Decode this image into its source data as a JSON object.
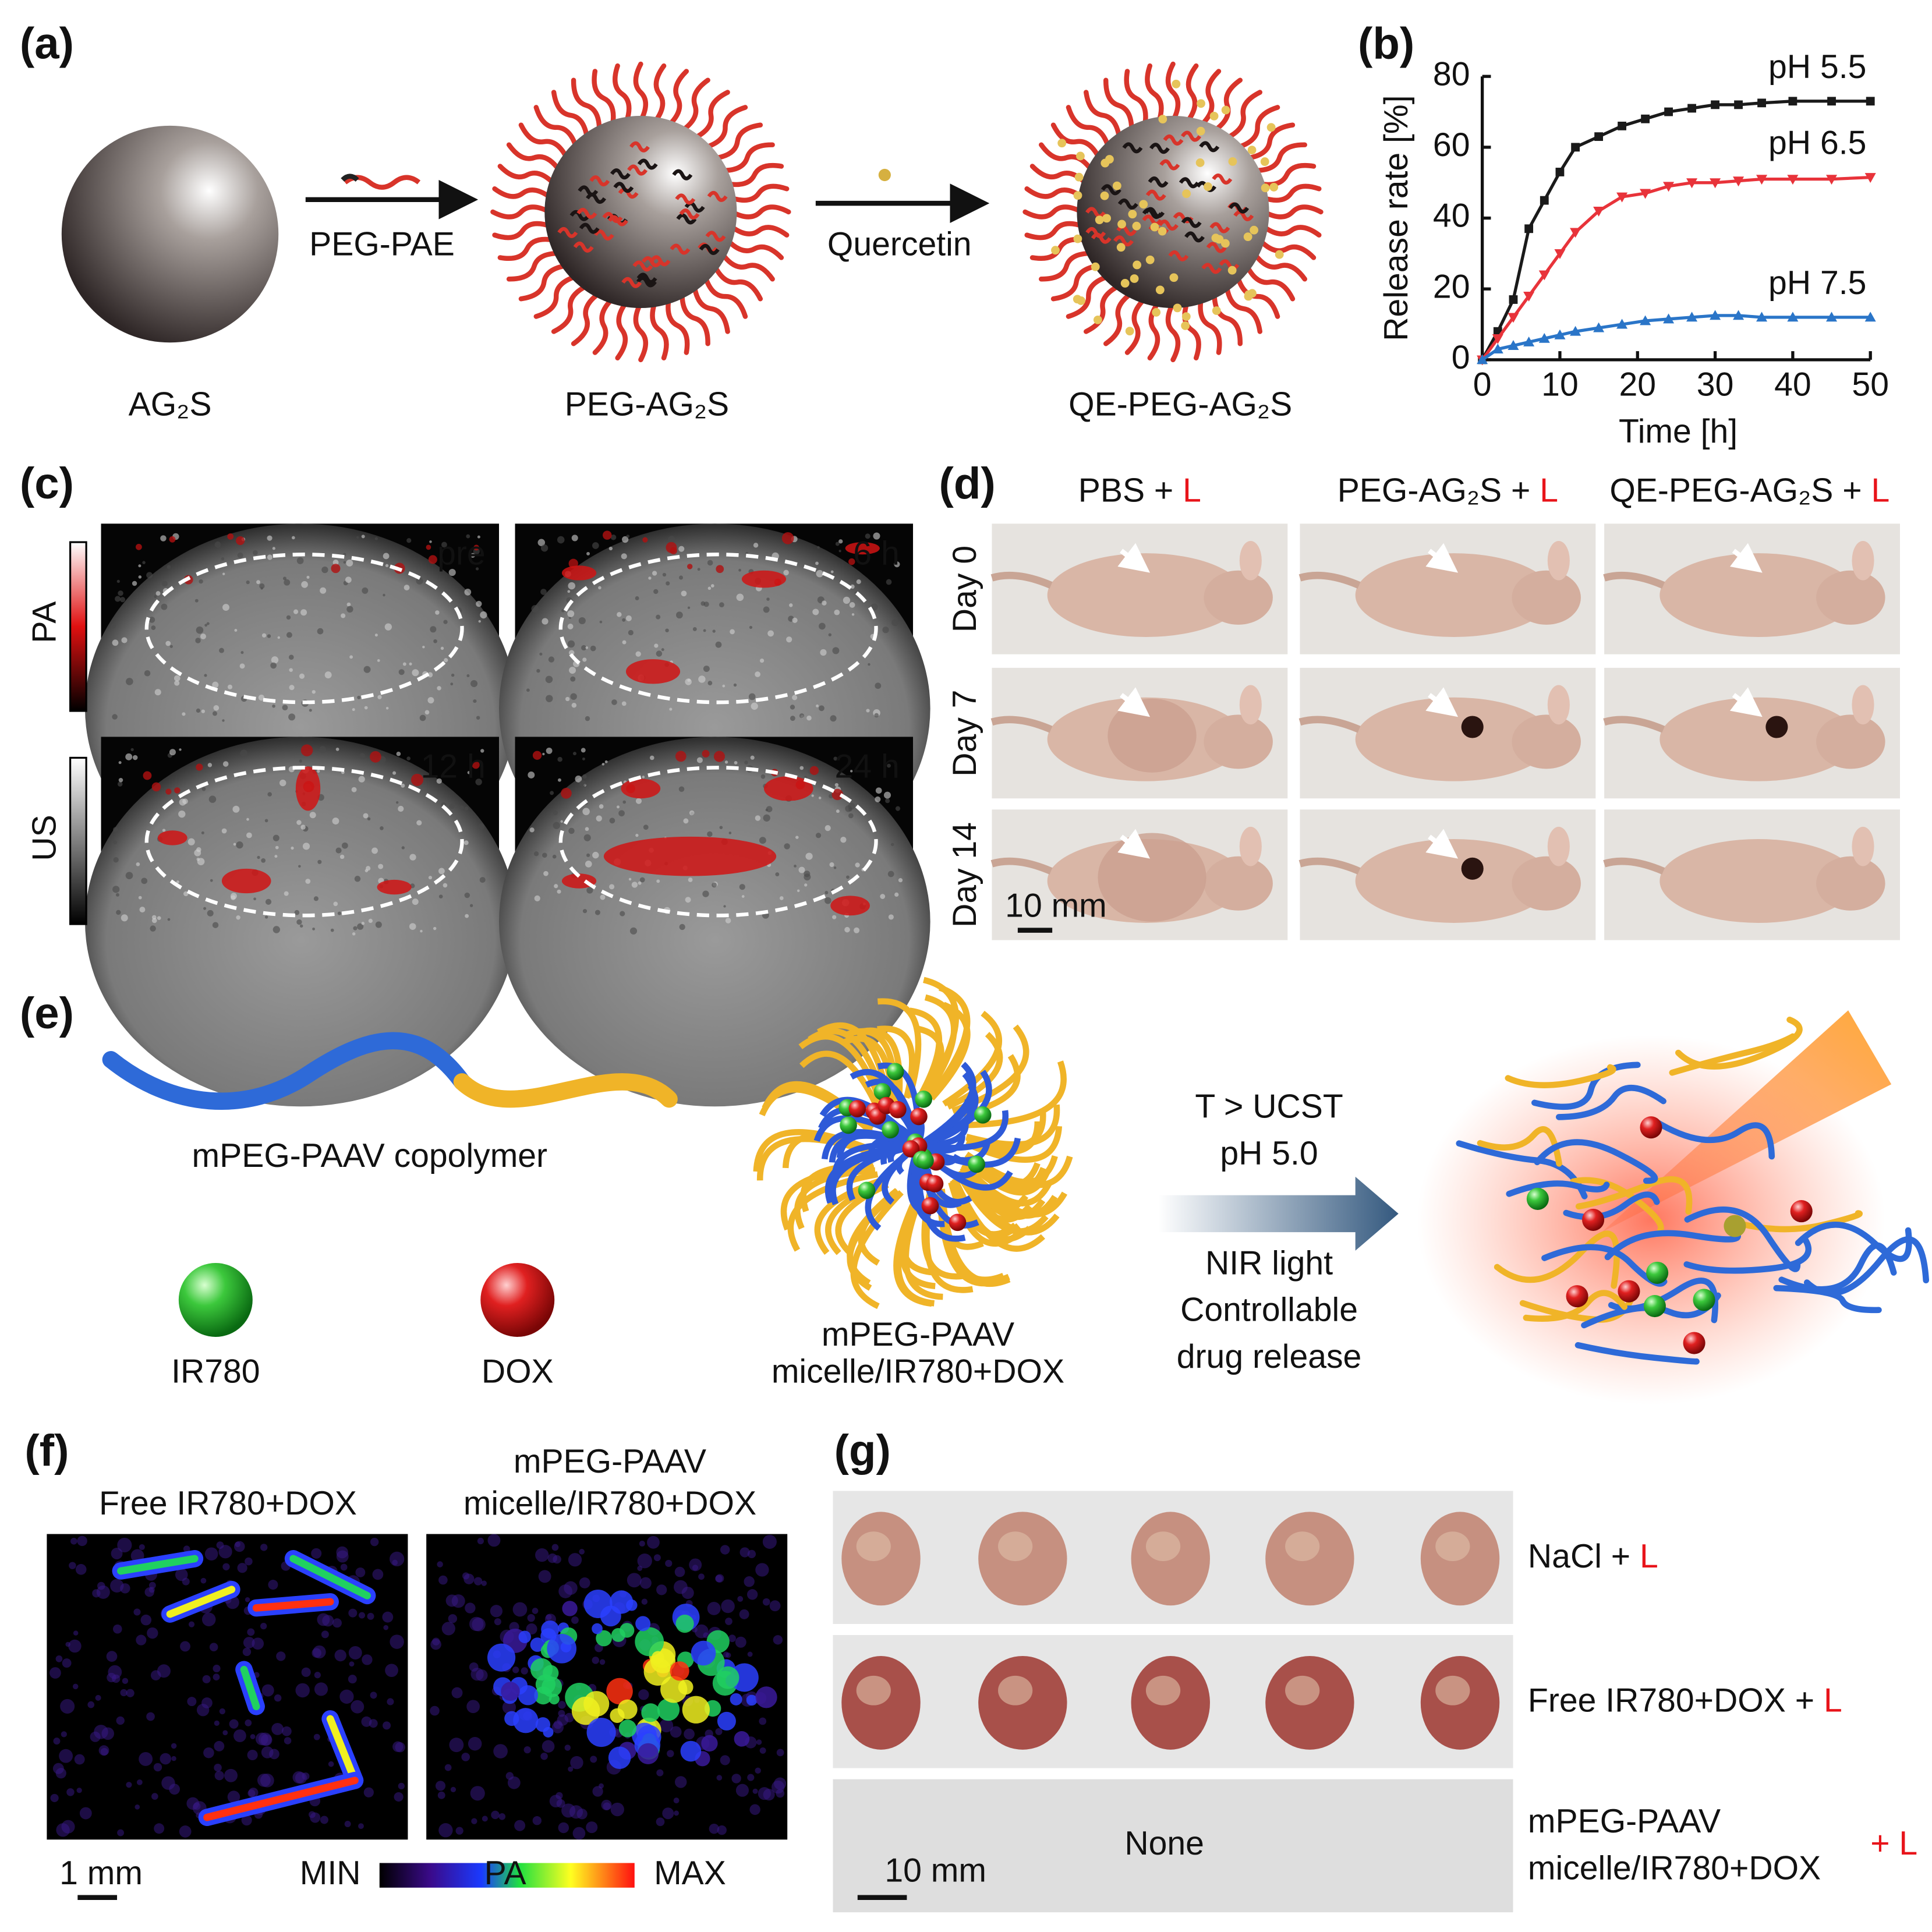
{
  "panel_a": {
    "label": "(a)",
    "step_1": "PEG-PAE",
    "step_2": "Quercetin",
    "products": [
      "AG₂S",
      "PEG-AG₂S",
      "QE-PEG-AG₂S"
    ]
  },
  "chart_data": {
    "type": "line",
    "panel_label": "(b)",
    "x_label": "Time [h]",
    "y_label": "Release rate [%]",
    "x": [
      0,
      2,
      4,
      6,
      8,
      10,
      12,
      15,
      18,
      21,
      24,
      27,
      30,
      33,
      36,
      40,
      45,
      50
    ],
    "series": [
      {
        "name": "pH 5.5",
        "color": "#1a1a1a",
        "marker": "square",
        "values": [
          0,
          8,
          17,
          37,
          45,
          53,
          60,
          63,
          66,
          68,
          70,
          71,
          72,
          72,
          72.5,
          73,
          73,
          73
        ]
      },
      {
        "name": "pH 6.5",
        "color": "#e8333a",
        "marker": "triangle-down",
        "values": [
          0,
          6,
          12,
          18,
          24,
          30,
          36,
          42,
          46,
          47,
          49,
          50,
          50,
          50.5,
          51,
          51,
          51,
          51.5
        ]
      },
      {
        "name": "pH 7.5",
        "color": "#2a75c8",
        "marker": "triangle-up",
        "values": [
          0,
          3,
          4,
          5,
          6,
          7,
          8,
          9,
          10,
          11,
          11.5,
          12,
          12.5,
          12.5,
          12,
          12,
          12,
          12
        ]
      }
    ],
    "xlim": [
      0,
      50
    ],
    "xticks": [
      0,
      10,
      20,
      30,
      40,
      50
    ],
    "ylim": [
      0,
      80
    ],
    "yticks": [
      0,
      20,
      40,
      60,
      80
    ],
    "grid": false
  },
  "panel_c": {
    "label": "(c)",
    "colorbars": [
      "PA",
      "US"
    ],
    "timepoints": [
      "pre",
      "6 h",
      "12 h",
      "24 h"
    ]
  },
  "panel_d": {
    "label": "(d)",
    "columns": [
      {
        "text": "PBS +",
        "highlight": "L"
      },
      {
        "text": "PEG-AG₂S +",
        "highlight": "L"
      },
      {
        "text": "QE-PEG-AG₂S +",
        "highlight": "L"
      }
    ],
    "rows": [
      "Day 0",
      "Day 7",
      "Day 14"
    ],
    "scale_bar": "10 mm"
  },
  "panel_e": {
    "label": "(e)",
    "copolymer": "mPEG-PAAV copolymer",
    "dyes": [
      "IR780",
      "DOX"
    ],
    "micelle": [
      "mPEG-PAAV",
      "micelle/IR780+DOX"
    ],
    "conditions": [
      "T > UCST",
      "pH 5.0"
    ],
    "release": [
      "NIR light",
      "Controllable",
      "drug release"
    ]
  },
  "panel_f": {
    "label": "(f)",
    "images": [
      [
        "Free IR780+DOX"
      ],
      [
        "mPEG-PAAV",
        "micelle/IR780+DOX"
      ]
    ],
    "scale_bar": "1 mm",
    "colorbar": {
      "min": "MIN",
      "title": "PA",
      "max": "MAX"
    }
  },
  "panel_g": {
    "label": "(g)",
    "rows": [
      {
        "text": [
          "NaCl +"
        ],
        "highlight": "L"
      },
      {
        "text": [
          "Free IR780+DOX +"
        ],
        "highlight": "L"
      },
      {
        "text": [
          "mPEG-PAAV",
          "micelle/IR780+DOX"
        ],
        "highlight": "+ L"
      }
    ],
    "empty_row": "None",
    "scale_bar": "10 mm"
  }
}
